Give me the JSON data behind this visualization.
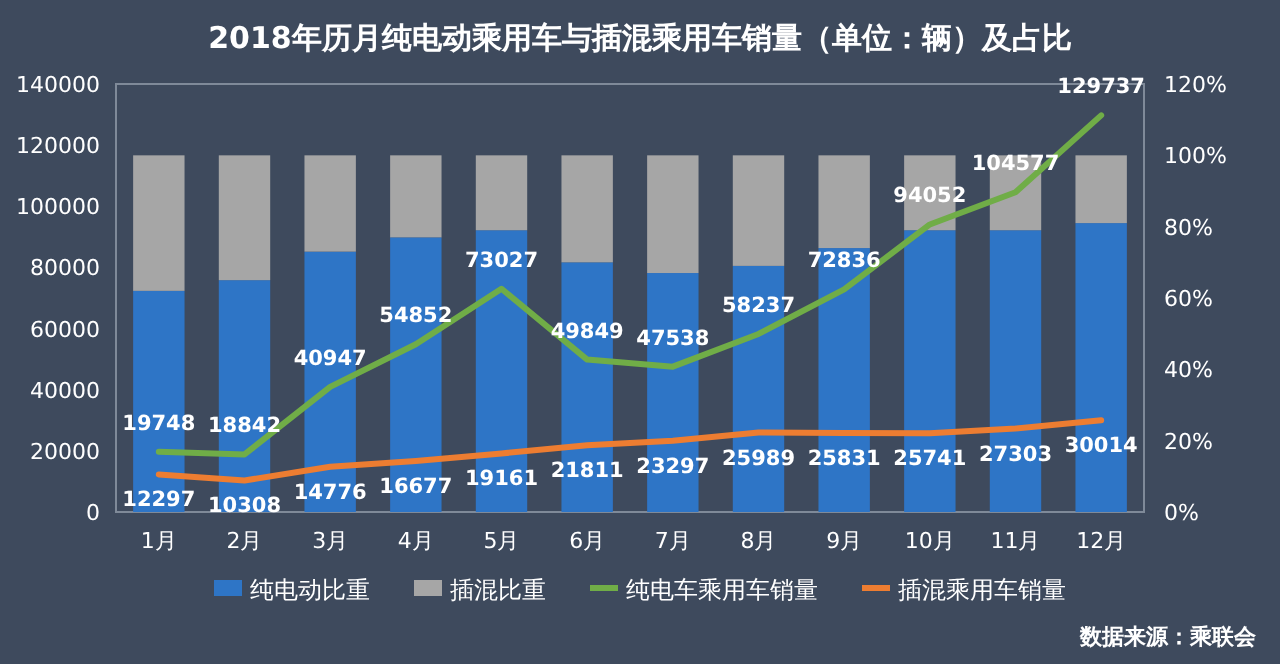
{
  "chart_data": {
    "type": "bar",
    "title": "2018年历月纯电动乘用车与插混乘用车销量（单位：辆）及占比",
    "categories": [
      "1月",
      "2月",
      "3月",
      "4月",
      "5月",
      "6月",
      "7月",
      "8月",
      "9月",
      "10月",
      "11月",
      "12月"
    ],
    "stacked": true,
    "series": [
      {
        "name": "纯电动比重",
        "axis": "y2",
        "color": "#2e75c6",
        "values": [
          62,
          65,
          73,
          77,
          79,
          70,
          67,
          69,
          74,
          79,
          79,
          81
        ]
      },
      {
        "name": "插混比重",
        "axis": "y2",
        "color": "#a6a6a6",
        "values": [
          38,
          35,
          27,
          23,
          21,
          30,
          33,
          31,
          26,
          21,
          21,
          19
        ]
      },
      {
        "name": "纯电车乘用车销量",
        "type": "line",
        "color": "#70ad47",
        "data_labels": true,
        "values": [
          19748,
          18842,
          40947,
          54852,
          73027,
          49849,
          47538,
          58237,
          72836,
          94052,
          104577,
          129737
        ]
      },
      {
        "name": "插混乘用车销量",
        "type": "line",
        "color": "#ed7d31",
        "data_labels": true,
        "values": [
          12297,
          10308,
          14776,
          16677,
          19161,
          21811,
          23297,
          25989,
          25831,
          25741,
          27303,
          30014
        ]
      }
    ],
    "ylim": [
      0,
      140000
    ],
    "yticks": [
      0,
      20000,
      40000,
      60000,
      80000,
      100000,
      120000,
      140000
    ],
    "y2lim": [
      0,
      120
    ],
    "y2ticks": [
      {
        "value": 0,
        "label": "0%"
      },
      {
        "value": 20,
        "label": "20%"
      },
      {
        "value": 40,
        "label": "40%"
      },
      {
        "value": 60,
        "label": "60%"
      },
      {
        "value": 80,
        "label": "80%"
      },
      {
        "value": 100,
        "label": "100%"
      },
      {
        "value": 120,
        "label": "120%"
      }
    ],
    "legend": "bottom",
    "grid": false,
    "annotations": [
      "数据来源：乘联会"
    ]
  }
}
